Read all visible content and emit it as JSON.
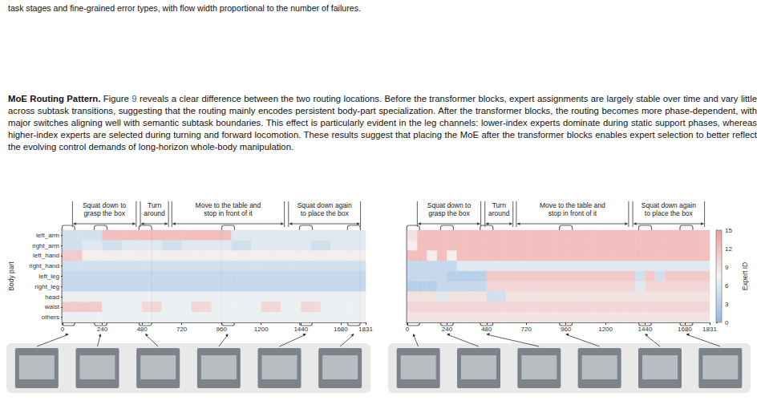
{
  "caption_fragment": "task stages and fine-grained error types, with flow width proportional to the number of failures.",
  "paragraph": {
    "heading": "MoE Routing Pattern.",
    "runs": [
      {
        "text": "Figure "
      },
      {
        "text": "9",
        "color": "#2a5db0"
      },
      {
        "text": " reveals a clear difference between the two routing locations. Before the transformer blocks, expert assignments are largely stable over time and vary little across subtask transitions, suggesting that the routing mainly encodes persistent body-part specialization. After the transformer blocks, the routing becomes more phase-dependent, with major switches aligning well with semantic subtask boundaries. This effect is particularly evident in the leg channels: lower-index experts dominate during static support phases, whereas higher-index experts are selected during turning and forward locomotion. These results suggest that placing the MoE after the transformer blocks enables expert selection to better reflect the evolving control demands of long-horizon whole-body manipulation."
      }
    ]
  },
  "colorbar": {
    "label": "Expert ID",
    "range": [
      0,
      15
    ],
    "ticks": [
      0,
      3,
      6,
      9,
      12,
      15
    ]
  },
  "chart_data": [
    {
      "type": "heatmap",
      "ylabel": "Body part",
      "categories": [
        "left_arm",
        "right_arm",
        "left_hand",
        "right_hand",
        "left_leg",
        "right_leg",
        "head",
        "waist",
        "others"
      ],
      "xlim": [
        0,
        1831
      ],
      "xticks": [
        0,
        240,
        480,
        720,
        960,
        1200,
        1440,
        1680,
        1831
      ],
      "x_edges": [
        0,
        60,
        120,
        180,
        240,
        300,
        360,
        420,
        480,
        540,
        600,
        660,
        720,
        780,
        840,
        900,
        960,
        1020,
        1080,
        1140,
        1200,
        1260,
        1320,
        1380,
        1440,
        1500,
        1560,
        1620,
        1680,
        1740,
        1800,
        1831
      ],
      "cells": [
        [
          5,
          5,
          5,
          5,
          12,
          12,
          12,
          12,
          12,
          12,
          12,
          12,
          12,
          12,
          12,
          12,
          12,
          6,
          6,
          6,
          6,
          6,
          6,
          6,
          6,
          6,
          6,
          6,
          6,
          6,
          6
        ],
        [
          5,
          5,
          6,
          6,
          5,
          5,
          6,
          6,
          6,
          6,
          5,
          5,
          6,
          6,
          6,
          6,
          6,
          5,
          5,
          6,
          6,
          6,
          6,
          6,
          6,
          5,
          5,
          6,
          6,
          6,
          6
        ],
        [
          11,
          11,
          8,
          8,
          8,
          8,
          8,
          8,
          8,
          8,
          8,
          8,
          8,
          8,
          8,
          8,
          8,
          8,
          8,
          8,
          8,
          8,
          8,
          8,
          8,
          8,
          8,
          8,
          8,
          8,
          8
        ],
        [
          5,
          5,
          5,
          5,
          5,
          5,
          5,
          5,
          5,
          5,
          5,
          5,
          5,
          5,
          5,
          5,
          5,
          5,
          5,
          5,
          5,
          5,
          5,
          5,
          5,
          5,
          5,
          5,
          5,
          5,
          5
        ],
        [
          4,
          4,
          4,
          4,
          4,
          4,
          4,
          4,
          4,
          4,
          4,
          4,
          4,
          4,
          4,
          4,
          4,
          4,
          4,
          4,
          4,
          4,
          4,
          4,
          4,
          4,
          4,
          4,
          4,
          4,
          4
        ],
        [
          4,
          4,
          4,
          4,
          4,
          4,
          4,
          4,
          4,
          4,
          4,
          4,
          4,
          4,
          4,
          4,
          4,
          4,
          4,
          4,
          4,
          4,
          4,
          4,
          4,
          4,
          4,
          4,
          4,
          4,
          4
        ],
        [
          7,
          7,
          7,
          7,
          7,
          7,
          7,
          7,
          7,
          7,
          7,
          7,
          7,
          7,
          7,
          7,
          7,
          7,
          7,
          7,
          7,
          7,
          7,
          7,
          7,
          7,
          7,
          7,
          7,
          7,
          7
        ],
        [
          11,
          11,
          11,
          11,
          7,
          7,
          7,
          7,
          10,
          10,
          7,
          7,
          7,
          10,
          10,
          7,
          7,
          7,
          7,
          7,
          10,
          10,
          7,
          7,
          10,
          10,
          7,
          7,
          7,
          7,
          7
        ],
        [
          7,
          7,
          7,
          7,
          7,
          7,
          7,
          7,
          7,
          7,
          7,
          7,
          7,
          7,
          7,
          7,
          7,
          7,
          7,
          7,
          7,
          7,
          7,
          7,
          7,
          7,
          7,
          7,
          7,
          7,
          7
        ]
      ],
      "subtasks": [
        {
          "label": [
            "Squat down to",
            "grasp the box"
          ],
          "start": 60,
          "end": 445
        },
        {
          "label": [
            "Turn",
            "around"
          ],
          "start": 470,
          "end": 640
        },
        {
          "label": [
            "Move to the table and",
            "stop in front of it"
          ],
          "start": 660,
          "end": 1340
        },
        {
          "label": [
            "Squat down again",
            "to place the box"
          ],
          "start": 1365,
          "end": 1800
        }
      ],
      "keyframes": [
        35,
        230,
        500,
        1000,
        1470,
        1760
      ]
    },
    {
      "type": "heatmap",
      "tick_labels": "x",
      "categories": [
        "left_arm",
        "right_arm",
        "left_hand",
        "right_hand",
        "left_leg",
        "right_leg",
        "head",
        "waist",
        "others"
      ],
      "xlim": [
        0,
        1831
      ],
      "xticks": [
        0,
        240,
        480,
        720,
        960,
        1200,
        1440,
        1680,
        1831
      ],
      "x_edges": [
        0,
        60,
        120,
        180,
        240,
        300,
        360,
        420,
        480,
        540,
        600,
        660,
        720,
        780,
        840,
        900,
        960,
        1020,
        1080,
        1140,
        1200,
        1260,
        1320,
        1380,
        1440,
        1500,
        1560,
        1620,
        1680,
        1740,
        1800,
        1831
      ],
      "cells": [
        [
          9,
          12,
          12,
          12,
          12,
          12,
          12,
          12,
          12,
          12,
          12,
          12,
          12,
          12,
          12,
          12,
          12,
          12,
          12,
          12,
          12,
          12,
          12,
          12,
          12,
          12,
          12,
          12,
          12,
          12,
          12
        ],
        [
          8,
          12,
          12,
          12,
          12,
          12,
          12,
          12,
          12,
          12,
          12,
          12,
          12,
          12,
          12,
          12,
          12,
          12,
          12,
          12,
          12,
          12,
          12,
          12,
          12,
          12,
          12,
          12,
          12,
          12,
          12
        ],
        [
          12,
          12,
          8,
          12,
          8,
          12,
          12,
          12,
          12,
          12,
          12,
          12,
          12,
          12,
          12,
          12,
          12,
          12,
          12,
          12,
          12,
          12,
          12,
          12,
          12,
          12,
          12,
          12,
          12,
          12,
          12
        ],
        [
          4,
          4,
          4,
          4,
          4,
          6,
          6,
          6,
          6,
          6,
          6,
          6,
          6,
          6,
          6,
          6,
          6,
          6,
          6,
          6,
          6,
          6,
          6,
          6,
          6,
          6,
          6,
          6,
          6,
          6,
          6
        ],
        [
          4,
          4,
          4,
          4,
          3,
          3,
          3,
          3,
          11,
          11,
          11,
          11,
          11,
          11,
          11,
          11,
          11,
          11,
          11,
          11,
          11,
          11,
          11,
          5,
          11,
          5,
          11,
          11,
          11,
          11,
          11
        ],
        [
          3,
          3,
          3,
          4,
          4,
          4,
          4,
          4,
          10,
          10,
          10,
          10,
          10,
          10,
          10,
          10,
          10,
          10,
          10,
          10,
          10,
          10,
          10,
          6,
          10,
          10,
          10,
          10,
          10,
          10,
          10
        ],
        [
          9,
          9,
          9,
          6,
          9,
          9,
          9,
          9,
          5,
          5,
          9,
          9,
          9,
          9,
          9,
          9,
          9,
          9,
          9,
          9,
          9,
          9,
          9,
          9,
          9,
          9,
          9,
          9,
          9,
          9,
          9
        ],
        [
          10,
          10,
          10,
          10,
          10,
          10,
          10,
          10,
          10,
          10,
          10,
          10,
          10,
          10,
          10,
          10,
          10,
          10,
          10,
          10,
          10,
          10,
          10,
          10,
          10,
          10,
          10,
          10,
          10,
          10,
          10
        ],
        [
          9,
          9,
          9,
          9,
          9,
          9,
          9,
          9,
          9,
          9,
          9,
          9,
          9,
          9,
          9,
          9,
          9,
          9,
          9,
          9,
          9,
          9,
          9,
          9,
          9,
          9,
          9,
          9,
          9,
          9,
          9
        ]
      ],
      "subtasks": [
        {
          "label": [
            "Squat down to",
            "grasp the box"
          ],
          "start": 60,
          "end": 445
        },
        {
          "label": [
            "Turn",
            "around"
          ],
          "start": 470,
          "end": 640
        },
        {
          "label": [
            "Move to the table and",
            "stop in front of it"
          ],
          "start": 660,
          "end": 1340
        },
        {
          "label": [
            "Squat down again",
            "to place the box"
          ],
          "start": 1365,
          "end": 1800
        }
      ],
      "keyframes": [
        35,
        240,
        480,
        960,
        1440,
        1690
      ]
    }
  ]
}
